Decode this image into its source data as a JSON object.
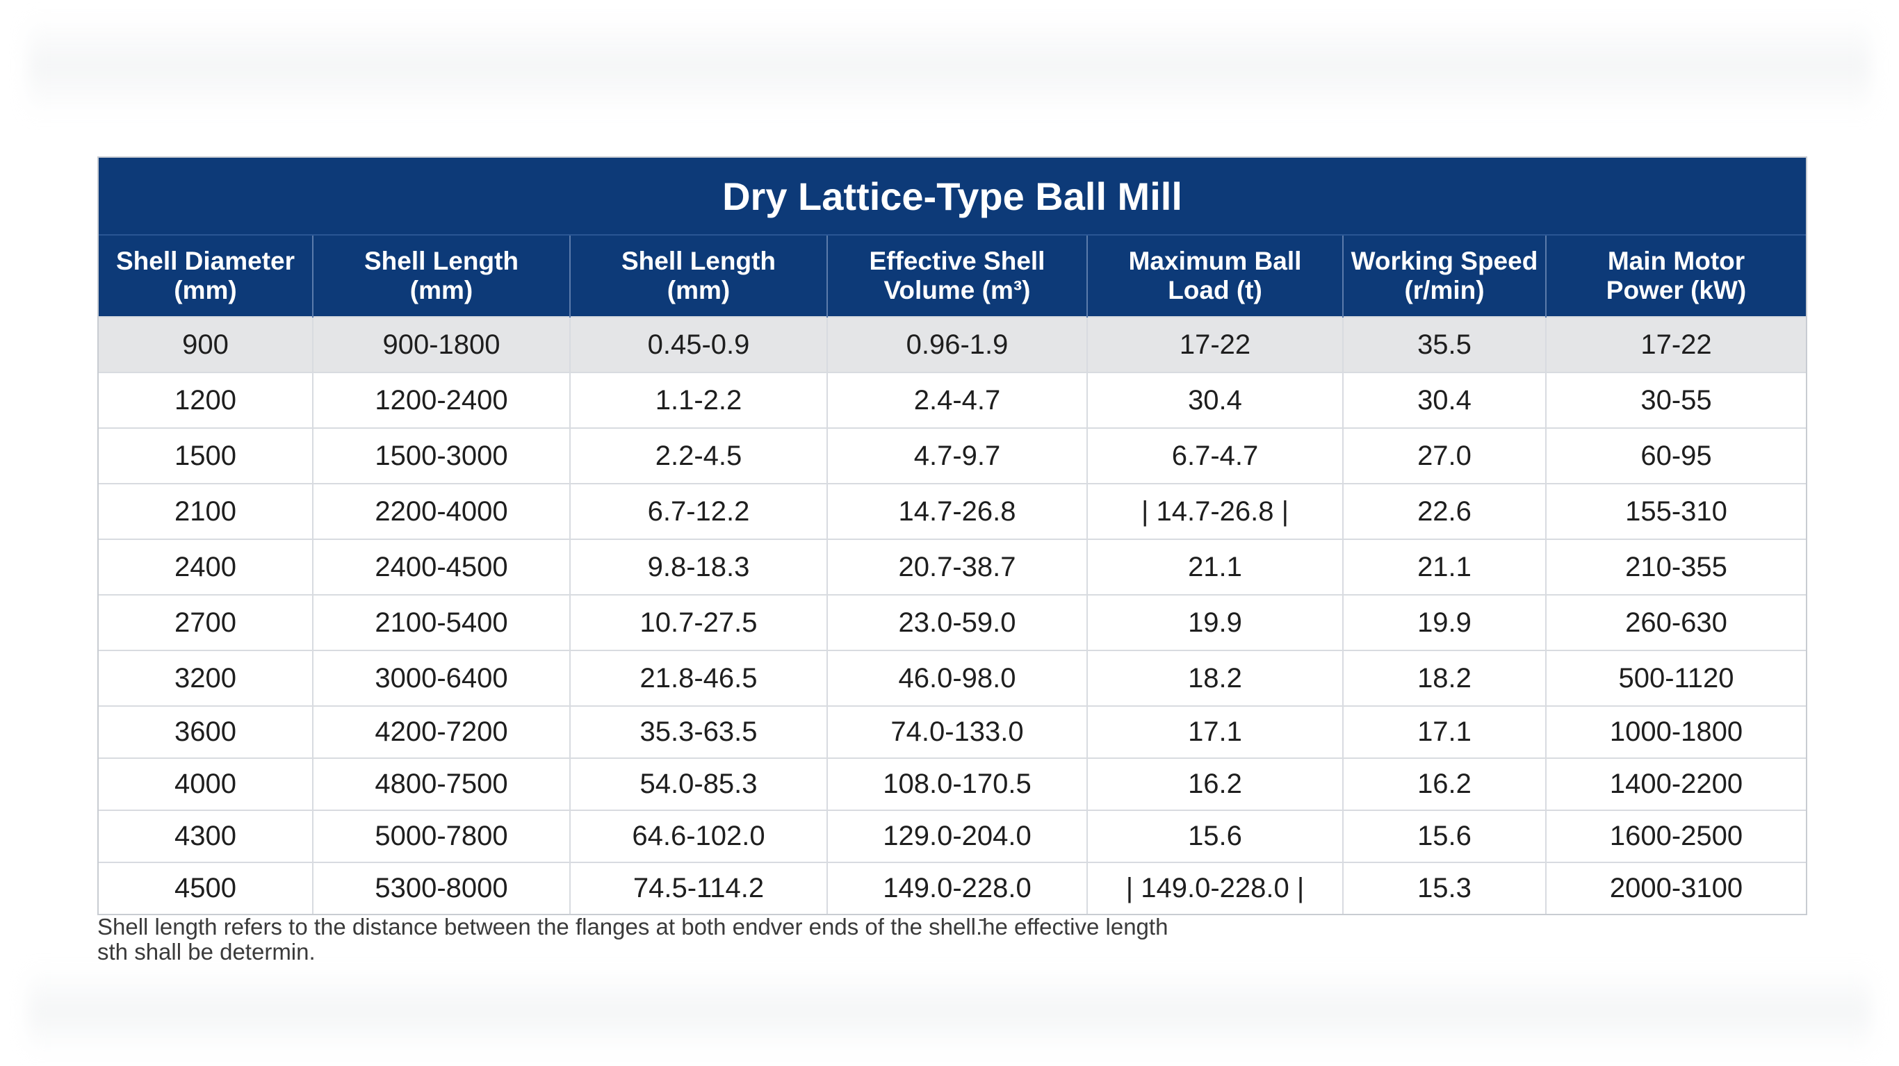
{
  "title": "Dry Lattice-Type Ball Mill",
  "headers": [
    [
      "Shell Diameter",
      "(mm)"
    ],
    [
      "Shell Length",
      "(mm)"
    ],
    [
      "Shell Length",
      "(mm)"
    ],
    [
      "Effective Shell",
      "Volume (m³)"
    ],
    [
      "Maximum Ball",
      "Load (t)"
    ],
    [
      "Working Speed",
      "(r/min)"
    ],
    [
      "Main Motor",
      "Power (kW)"
    ]
  ],
  "rows": [
    [
      "900",
      "900-1800",
      "0.45-0.9",
      "0.96-1.9",
      "17-22",
      "35.5",
      "17-22"
    ],
    [
      "1200",
      "1200-2400",
      "1.1-2.2",
      "2.4-4.7",
      "30.4",
      "30.4",
      "30-55"
    ],
    [
      "1500",
      "1500-3000",
      "2.2-4.5",
      "4.7-9.7",
      "6.7-4.7",
      "27.0",
      "60-95"
    ],
    [
      "2100",
      "2200-4000",
      "6.7-12.2",
      "14.7-26.8",
      "| 14.7-26.8 |",
      "22.6",
      "155-310"
    ],
    [
      "2400",
      "2400-4500",
      "9.8-18.3",
      "20.7-38.7",
      "21.1",
      "21.1",
      "210-355"
    ],
    [
      "2700",
      "2100-5400",
      "10.7-27.5",
      "23.0-59.0",
      "19.9",
      "19.9",
      "260-630"
    ],
    [
      "3200",
      "3000-6400",
      "21.8-46.5",
      "46.0-98.0",
      "18.2",
      "18.2",
      "500-1120"
    ],
    [
      "3600",
      "4200-7200",
      "35.3-63.5",
      "74.0-133.0",
      "17.1",
      "17.1",
      "1000-1800"
    ],
    [
      "4000",
      "4800-7500",
      "54.0-85.3",
      "108.0-170.5",
      "16.2",
      "16.2",
      "1400-2200"
    ],
    [
      "4300",
      "5000-7800",
      "64.6-102.0",
      "129.0-204.0",
      "15.6",
      "15.6",
      "1600-2500"
    ],
    [
      "4500",
      "5300-8000",
      "74.5-114.2",
      "149.0-228.0",
      "| 149.0-228.0 |",
      "15.3",
      "2000-3100"
    ]
  ],
  "footnote": {
    "line1": "Shell length refers to the distance between the flanges at both endver ends of the shell.̄he effective length",
    "line2": "sth shall be determin."
  }
}
